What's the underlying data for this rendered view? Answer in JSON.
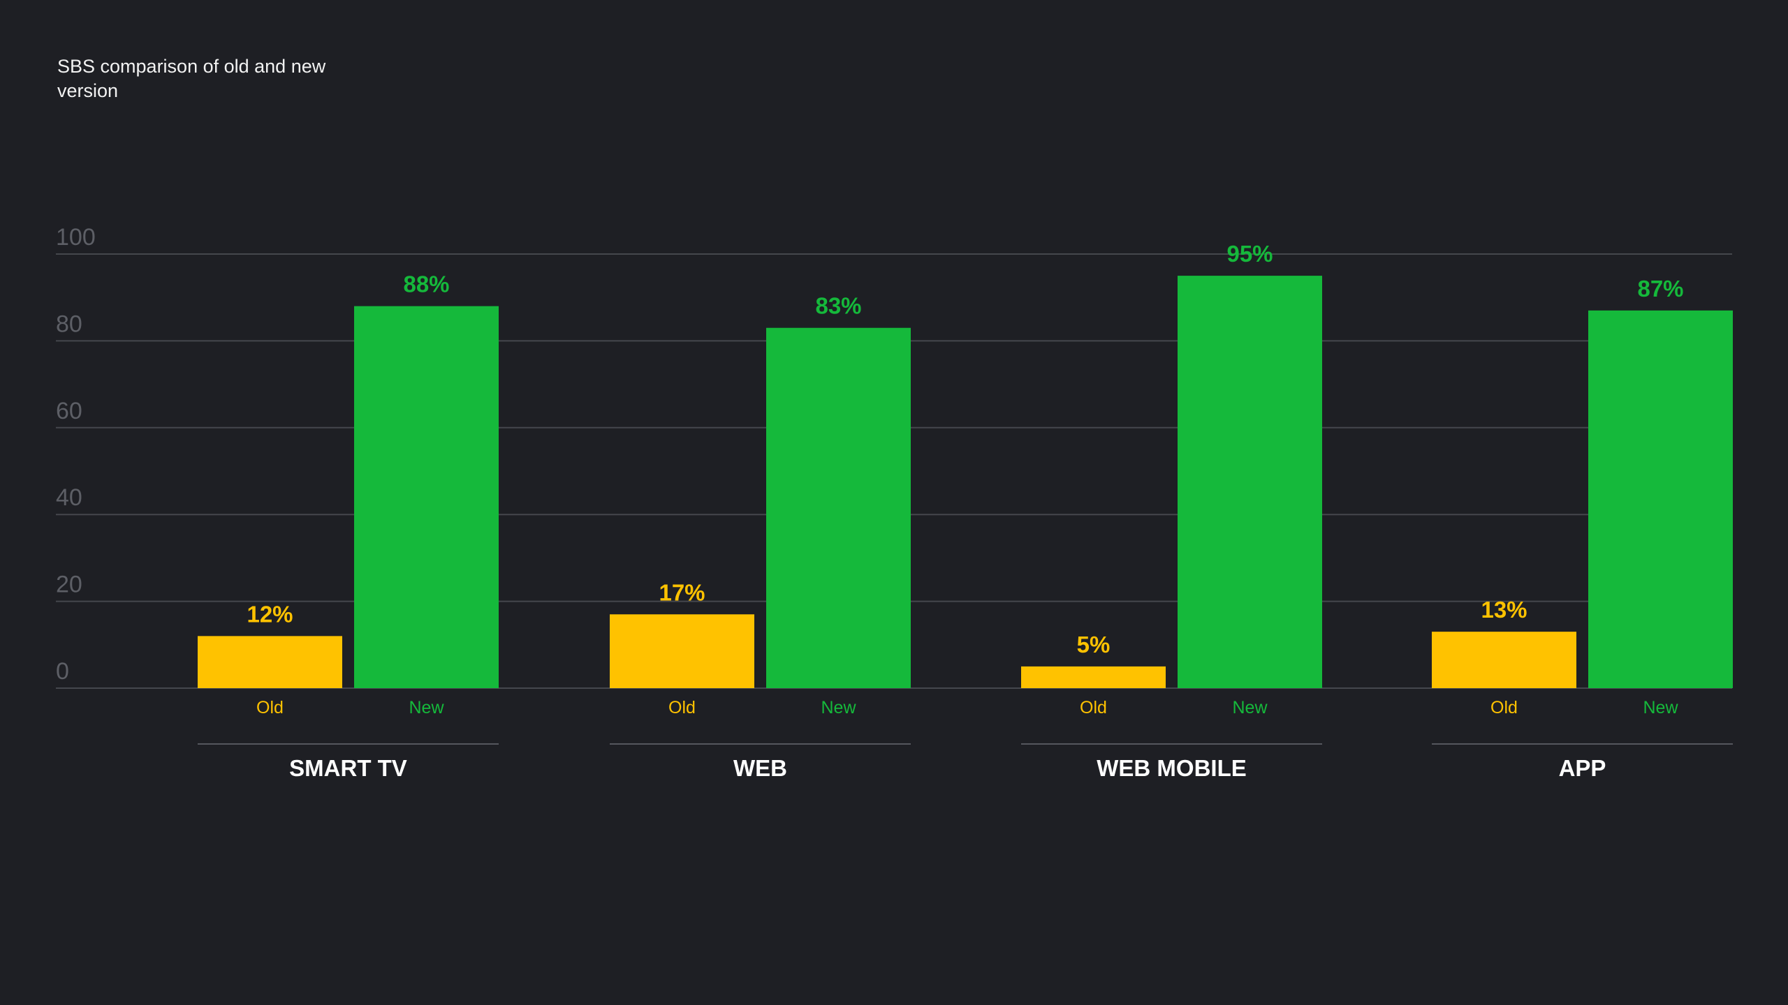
{
  "chart_data": {
    "type": "bar",
    "title": "SBS comparison of old and new version",
    "xlabel": "",
    "ylabel": "",
    "ylim": [
      0,
      100
    ],
    "yticks": [
      0,
      20,
      40,
      60,
      80,
      100
    ],
    "grid": true,
    "categories": [
      "SMART TV",
      "WEB",
      "WEB MOBILE",
      "APP"
    ],
    "series": [
      {
        "name": "Old",
        "color": "#ffc200",
        "values": [
          12,
          17,
          5,
          13
        ],
        "labels": [
          "12%",
          "17%",
          "5%",
          "13%"
        ]
      },
      {
        "name": "New",
        "color": "#15b93b",
        "values": [
          88,
          83,
          95,
          87
        ],
        "labels": [
          "88%",
          "83%",
          "95%",
          "87%"
        ]
      }
    ]
  }
}
